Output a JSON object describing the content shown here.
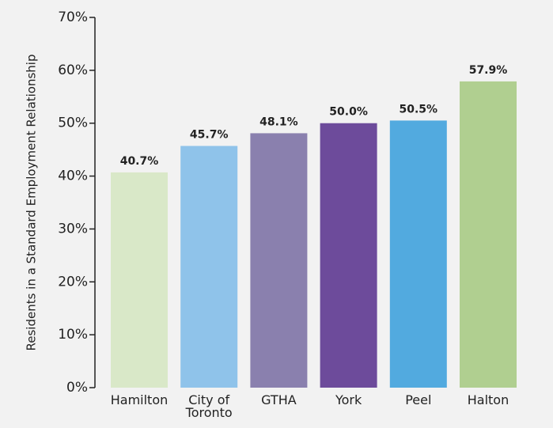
{
  "chart_data": {
    "type": "bar",
    "y_label": "Residents in a Standard Employment Relationship",
    "categories": [
      "Hamilton",
      "City of Toronto",
      "GTHA",
      "York",
      "Peel",
      "Halton"
    ],
    "values": [
      40.7,
      45.7,
      48.1,
      50.0,
      50.5,
      57.9
    ],
    "value_labels": [
      "40.7%",
      "45.7%",
      "48.1%",
      "50.0%",
      "50.5%",
      "57.9%"
    ],
    "colors": [
      "#d9e8c8",
      "#8fc3ea",
      "#8a80ae",
      "#6d4b9b",
      "#52aadf",
      "#b0cf90"
    ],
    "ylim": [
      0,
      70
    ],
    "yticks": [
      {
        "value": 0,
        "label": "0%"
      },
      {
        "value": 10,
        "label": "10%"
      },
      {
        "value": 20,
        "label": "20%"
      },
      {
        "value": 30,
        "label": "30%"
      },
      {
        "value": 40,
        "label": "40%"
      },
      {
        "value": 50,
        "label": "50%"
      },
      {
        "value": 60,
        "label": "60%"
      },
      {
        "value": 70,
        "label": "70%"
      }
    ]
  }
}
